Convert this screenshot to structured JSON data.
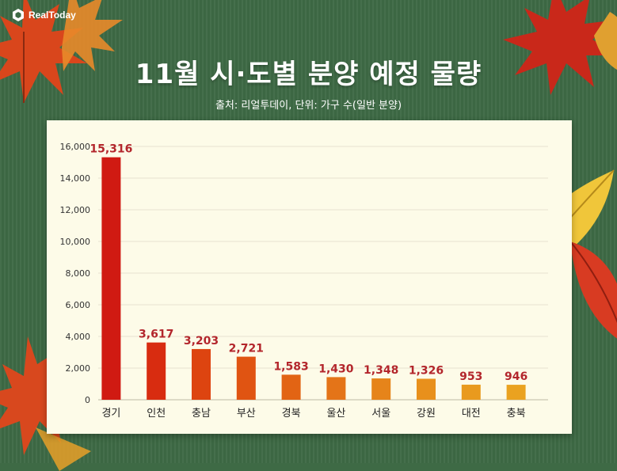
{
  "brand": {
    "name": "RealToday"
  },
  "header": {
    "title": "11월 시·도별 분양 예정 물량",
    "subtitle": "출처: 리얼투데이, 단위: 가구 수(일반 분양)"
  },
  "colors": {
    "background": "#3e6a45",
    "panel": "#fdfbe8",
    "bar_top": "#d01a12",
    "bar_bottom": "#e8a020",
    "value_label": "#b3262c"
  },
  "chart_data": {
    "type": "bar",
    "title": "11월 시·도별 분양 예정 물량",
    "categories": [
      "경기",
      "인천",
      "충남",
      "부산",
      "경북",
      "울산",
      "서울",
      "강원",
      "대전",
      "충북"
    ],
    "values": [
      15316,
      3617,
      3203,
      2721,
      1583,
      1430,
      1348,
      1326,
      953,
      946
    ],
    "value_labels": [
      "15,316",
      "3,617",
      "3,203",
      "2,721",
      "1,583",
      "1,430",
      "1,348",
      "1,326",
      "953",
      "946"
    ],
    "bar_colors": [
      "#d01a12",
      "#d82c10",
      "#dd4410",
      "#e05412",
      "#e26414",
      "#e47418",
      "#e6841a",
      "#e8901c",
      "#e99a1e",
      "#eaa220"
    ],
    "ylim": [
      0,
      16000
    ],
    "yticks": [
      0,
      2000,
      4000,
      6000,
      8000,
      10000,
      12000,
      14000,
      16000
    ],
    "ytick_labels": [
      "0",
      "2,000",
      "4,000",
      "6,000",
      "8,000",
      "10,000",
      "12,000",
      "14,000",
      "16,000"
    ],
    "xlabel": "",
    "ylabel": "",
    "grid": true
  }
}
